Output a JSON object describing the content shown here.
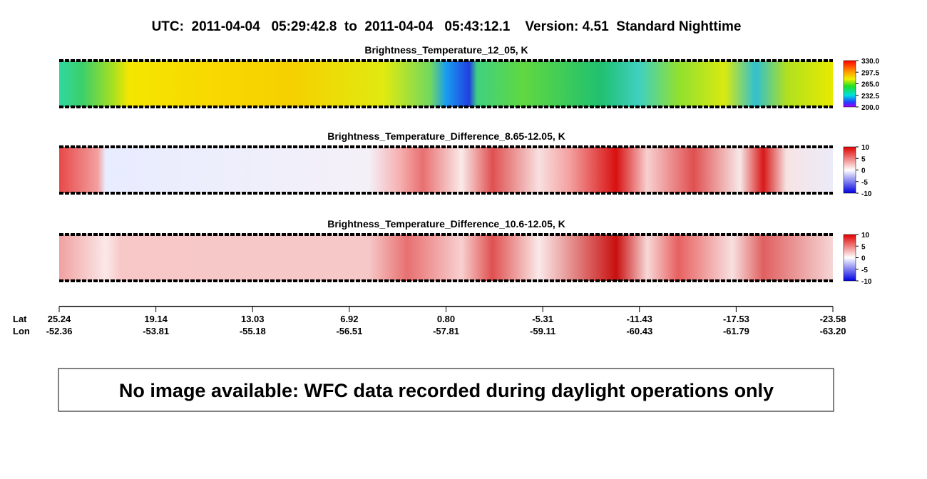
{
  "header": {
    "title": "UTC:  2011-04-04   05:29:42.8  to  2011-04-04   05:43:12.1    Version: 4.51  Standard Nighttime"
  },
  "panels": [
    {
      "title": "Brightness_Temperature_12_05, K",
      "colorbar": {
        "range": [
          200,
          330
        ],
        "ticks": [
          {
            "value": 330,
            "label": "330.0"
          },
          {
            "value": 297.5,
            "label": "297.5"
          },
          {
            "value": 265,
            "label": "265.0"
          },
          {
            "value": 232.5,
            "label": "232.5"
          },
          {
            "value": 200,
            "label": "200.0"
          }
        ]
      }
    },
    {
      "title": "Brightness_Temperature_Difference_8.65-12.05, K",
      "colorbar": {
        "range": [
          -10,
          10
        ],
        "ticks": [
          10,
          5,
          0,
          -5,
          -10
        ]
      }
    },
    {
      "title": "Brightness_Temperature_Difference_10.6-12.05, K",
      "colorbar": {
        "range": [
          -10,
          10
        ],
        "ticks": [
          10,
          5,
          0,
          -5,
          -10
        ]
      }
    }
  ],
  "axis": {
    "lat_label": "Lat",
    "lon_label": "Lon",
    "lat": [
      "25.24",
      "19.14",
      "13.03",
      "6.92",
      "0.80",
      "-5.31",
      "-11.43",
      "-17.53",
      "-23.58"
    ],
    "lon": [
      "-52.36",
      "-53.81",
      "-55.18",
      "-56.51",
      "-57.81",
      "-59.11",
      "-60.43",
      "-61.79",
      "-63.20"
    ]
  },
  "message": "No image available: WFC data recorded during daylight operations only"
}
